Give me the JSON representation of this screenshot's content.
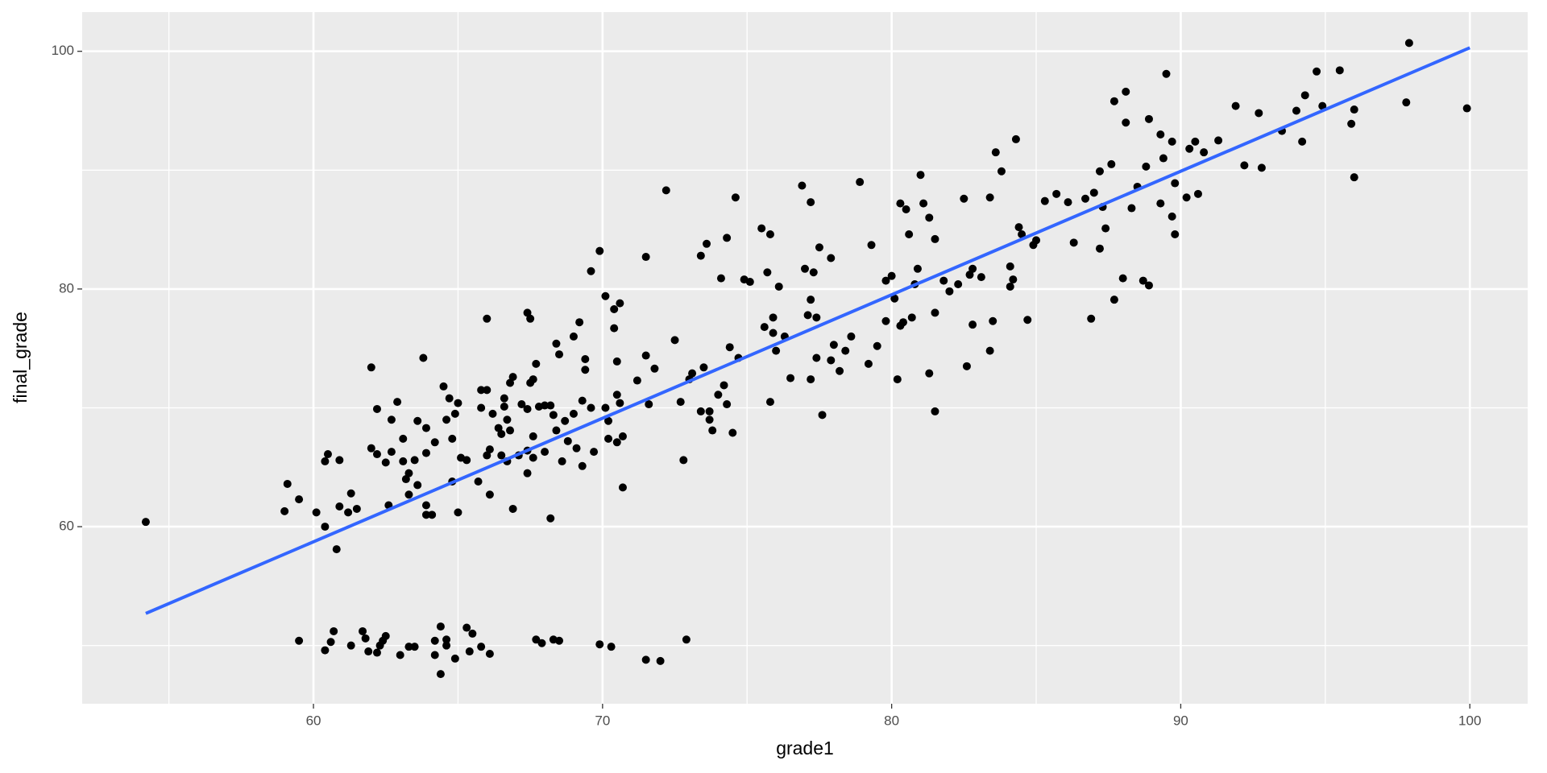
{
  "chart_data": {
    "type": "scatter",
    "x_label": "grade1",
    "y_label": "final_grade",
    "xlim": [
      52,
      102
    ],
    "ylim": [
      45.1,
      103.3
    ],
    "xticks": [
      60,
      70,
      80,
      90,
      100
    ],
    "yticks": [
      60,
      80,
      100
    ],
    "grid": true,
    "color": "#000000",
    "x": [
      54.2,
      59.0,
      59.1,
      59.5,
      59.5,
      60.1,
      60.4,
      60.4,
      60.5,
      60.4,
      60.6,
      60.7,
      60.8,
      60.9,
      60.9,
      61.2,
      61.3,
      61.3,
      61.5,
      61.7,
      61.8,
      61.9,
      62.0,
      62.0,
      62.2,
      62.2,
      62.2,
      62.3,
      62.4,
      62.5,
      62.5,
      62.6,
      62.7,
      62.7,
      62.9,
      63.0,
      63.1,
      63.1,
      63.2,
      63.3,
      63.3,
      63.3,
      63.5,
      63.5,
      63.6,
      63.6,
      63.8,
      63.9,
      63.9,
      63.9,
      63.9,
      64.1,
      64.2,
      64.2,
      64.2,
      64.4,
      64.4,
      64.5,
      64.6,
      64.6,
      64.6,
      64.7,
      64.8,
      64.8,
      64.9,
      64.9,
      65.0,
      65.0,
      65.1,
      65.3,
      65.3,
      65.4,
      65.5,
      65.7,
      65.8,
      65.8,
      65.8,
      66.0,
      66.0,
      66.1,
      66.0,
      66.1,
      66.1,
      66.2,
      66.4,
      66.5,
      66.5,
      66.6,
      66.6,
      66.7,
      66.7,
      66.8,
      66.8,
      66.9,
      66.9,
      67.1,
      67.2,
      67.4,
      67.4,
      67.4,
      67.4,
      67.5,
      67.5,
      67.6,
      67.6,
      67.6,
      67.7,
      67.7,
      67.8,
      67.9,
      68.0,
      68.0,
      68.2,
      68.2,
      68.3,
      68.3,
      68.4,
      68.4,
      68.5,
      68.5,
      68.6,
      68.7,
      68.8,
      69.0,
      69.0,
      69.1,
      69.2,
      69.3,
      69.3,
      69.4,
      69.4,
      69.6,
      69.6,
      69.7,
      69.9,
      69.9,
      70.1,
      70.1,
      70.2,
      70.2,
      70.3,
      70.4,
      70.4,
      70.5,
      70.5,
      70.5,
      70.6,
      70.6,
      70.7,
      70.7,
      71.2,
      71.5,
      71.5,
      71.5,
      71.6,
      71.8,
      72.0,
      72.2,
      72.5,
      72.7,
      72.8,
      72.9,
      73.0,
      73.1,
      73.4,
      73.4,
      73.5,
      73.6,
      73.7,
      73.7,
      73.8,
      74.0,
      74.1,
      74.2,
      74.3,
      74.3,
      74.4,
      74.5,
      74.6,
      74.7,
      74.9,
      75.1,
      75.5,
      75.6,
      75.7,
      75.8,
      75.8,
      75.9,
      75.9,
      76.0,
      76.1,
      76.3,
      76.5,
      76.9,
      77.0,
      77.1,
      77.2,
      77.2,
      77.2,
      77.3,
      77.4,
      77.4,
      77.5,
      77.6,
      77.9,
      77.9,
      78.0,
      78.2,
      78.4,
      78.6,
      78.9,
      79.2,
      79.3,
      79.5,
      79.8,
      79.8,
      80.0,
      80.1,
      80.2,
      80.3,
      80.3,
      80.4,
      80.5,
      80.6,
      80.7,
      80.8,
      80.9,
      81.0,
      81.1,
      81.3,
      81.3,
      81.5,
      81.5,
      81.5,
      81.8,
      82.0,
      82.3,
      82.5,
      82.6,
      82.7,
      82.8,
      82.8,
      83.1,
      83.4,
      83.4,
      83.5,
      83.6,
      83.8,
      84.1,
      84.1,
      84.2,
      84.3,
      84.4,
      84.5,
      84.7,
      84.9,
      85.0,
      85.3,
      85.7,
      86.1,
      86.3,
      86.7,
      86.9,
      87.0,
      87.2,
      87.2,
      87.3,
      87.4,
      87.6,
      87.7,
      87.7,
      88.0,
      88.1,
      88.1,
      88.3,
      88.5,
      88.8,
      88.7,
      88.9,
      88.9,
      89.3,
      89.3,
      89.4,
      89.5,
      89.7,
      89.7,
      89.8,
      89.8,
      90.2,
      90.3,
      90.5,
      90.6,
      90.8,
      91.3,
      91.9,
      92.2,
      92.7,
      92.8,
      93.5,
      94.0,
      94.2,
      94.3,
      94.7,
      94.9,
      95.5,
      95.9,
      96.0,
      96.0,
      97.8,
      97.9,
      99.9
    ],
    "y": [
      60.4,
      61.3,
      63.6,
      62.3,
      50.4,
      61.2,
      65.5,
      60.0,
      66.1,
      49.6,
      50.3,
      51.2,
      58.1,
      65.6,
      61.7,
      61.2,
      62.8,
      50.0,
      61.5,
      51.2,
      50.6,
      49.5,
      73.4,
      66.6,
      49.4,
      69.9,
      66.1,
      50.0,
      50.4,
      50.8,
      65.4,
      61.8,
      69.0,
      66.3,
      70.5,
      49.2,
      67.4,
      65.5,
      64.0,
      64.5,
      62.7,
      49.9,
      65.6,
      49.9,
      63.5,
      68.9,
      74.2,
      66.2,
      61.0,
      61.8,
      68.3,
      61.0,
      67.1,
      50.4,
      49.2,
      47.6,
      51.6,
      71.8,
      69.0,
      50.0,
      50.5,
      70.8,
      63.8,
      67.4,
      48.9,
      69.5,
      61.2,
      70.4,
      65.8,
      51.5,
      65.6,
      49.5,
      51.0,
      63.8,
      71.5,
      70.0,
      49.9,
      77.5,
      71.5,
      49.3,
      66.0,
      66.5,
      62.7,
      69.5,
      68.3,
      66.0,
      67.8,
      70.1,
      70.8,
      65.5,
      69.0,
      68.1,
      72.1,
      72.6,
      61.5,
      66.0,
      70.3,
      66.4,
      69.9,
      64.5,
      78.0,
      77.5,
      72.1,
      67.6,
      65.8,
      72.4,
      73.7,
      50.5,
      70.1,
      50.2,
      66.3,
      70.2,
      60.7,
      70.2,
      69.4,
      50.5,
      75.4,
      68.1,
      74.5,
      50.4,
      65.5,
      68.9,
      67.2,
      76.0,
      69.5,
      66.6,
      77.2,
      65.1,
      70.6,
      73.2,
      74.1,
      70.0,
      81.5,
      66.3,
      83.2,
      50.1,
      79.4,
      70.0,
      67.4,
      68.9,
      49.9,
      76.7,
      78.3,
      73.9,
      71.1,
      67.1,
      70.4,
      78.8,
      67.6,
      63.3,
      72.3,
      82.7,
      74.4,
      48.8,
      70.3,
      73.3,
      48.7,
      88.3,
      75.7,
      70.5,
      65.6,
      50.5,
      72.4,
      72.9,
      82.8,
      69.7,
      73.4,
      83.8,
      69.7,
      69.0,
      68.1,
      71.1,
      80.9,
      71.9,
      84.3,
      70.3,
      75.1,
      67.9,
      87.7,
      74.2,
      80.8,
      80.6,
      85.1,
      76.8,
      81.4,
      70.5,
      84.6,
      77.6,
      76.3,
      74.8,
      80.2,
      76.0,
      72.5,
      88.7,
      81.7,
      77.8,
      87.3,
      79.1,
      72.4,
      81.4,
      74.2,
      77.6,
      83.5,
      69.4,
      74.0,
      82.6,
      75.3,
      73.1,
      74.8,
      76.0,
      89.0,
      73.7,
      83.7,
      75.2,
      77.3,
      80.7,
      81.1,
      79.2,
      72.4,
      76.9,
      87.2,
      77.2,
      86.7,
      84.6,
      77.6,
      80.4,
      81.7,
      89.6,
      87.2,
      86.0,
      72.9,
      78.0,
      69.7,
      84.2,
      80.7,
      79.8,
      80.4,
      87.6,
      73.5,
      81.2,
      77.0,
      81.7,
      81.0,
      87.7,
      74.8,
      77.3,
      91.5,
      89.9,
      80.2,
      81.9,
      80.8,
      92.6,
      85.2,
      84.6,
      77.4,
      83.7,
      84.1,
      87.4,
      88.0,
      87.3,
      83.9,
      87.6,
      77.5,
      88.1,
      89.9,
      83.4,
      86.9,
      85.1,
      90.5,
      79.1,
      95.8,
      80.9,
      96.6,
      94.0,
      86.8,
      88.6,
      90.3,
      80.7,
      80.3,
      94.3,
      87.2,
      93.0,
      91.0,
      98.1,
      92.4,
      86.1,
      84.6,
      88.9,
      87.7,
      91.8,
      92.4,
      88.0,
      91.5,
      92.5,
      95.4,
      90.4,
      94.8,
      90.2,
      93.3,
      95.0,
      92.4,
      96.3,
      98.3,
      95.4,
      98.4,
      93.9,
      95.1,
      89.4,
      95.7,
      100.7,
      95.2
    ],
    "trend": {
      "x": [
        54.2,
        100
      ],
      "y": [
        52.7,
        100.3
      ],
      "color": "#3366ff"
    }
  }
}
